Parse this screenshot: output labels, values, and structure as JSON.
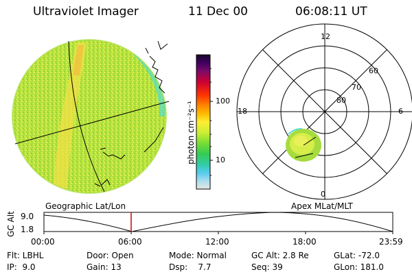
{
  "header": {
    "title": "Ultraviolet Imager",
    "date": "11 Dec 00",
    "time": "06:08:11 UT"
  },
  "colorbar": {
    "unit_label": "photon cm⁻²s⁻¹",
    "ticks": [
      "100",
      "10"
    ]
  },
  "left_panel": {
    "caption": "Geographic Lat/Lon"
  },
  "right_panel": {
    "caption": "Apex MLat/MLT",
    "mlt_labels": {
      "top": "12",
      "right": "6",
      "bottom": "0",
      "left": "18"
    },
    "lat_labels": [
      "60",
      "70",
      "80"
    ]
  },
  "altitude_plot": {
    "ylabel": "GC Alt",
    "y_top": "9.0",
    "y_bottom": "1.8",
    "x_ticks": [
      "00:00",
      "06:00",
      "12:00",
      "18:00",
      "23:59"
    ],
    "marker_time": "06:08"
  },
  "footer": {
    "row1": {
      "flt": "Flt: LBHL",
      "door": "Door: Open",
      "mode": "Mode: Normal",
      "gcalt": "GC Alt: 2.8 Re",
      "glat": "GLat: -72.0"
    },
    "row2": {
      "ip": "IP:  9.0",
      "gain": "Gain: 13",
      "dsp": "Dsp:    7.7",
      "seq": "Seq: 39",
      "glon": "GLon: 181.0"
    }
  },
  "colors": {
    "marker": "#cc0000",
    "disk_base": "#b5e43a",
    "graticule": "#000000"
  }
}
